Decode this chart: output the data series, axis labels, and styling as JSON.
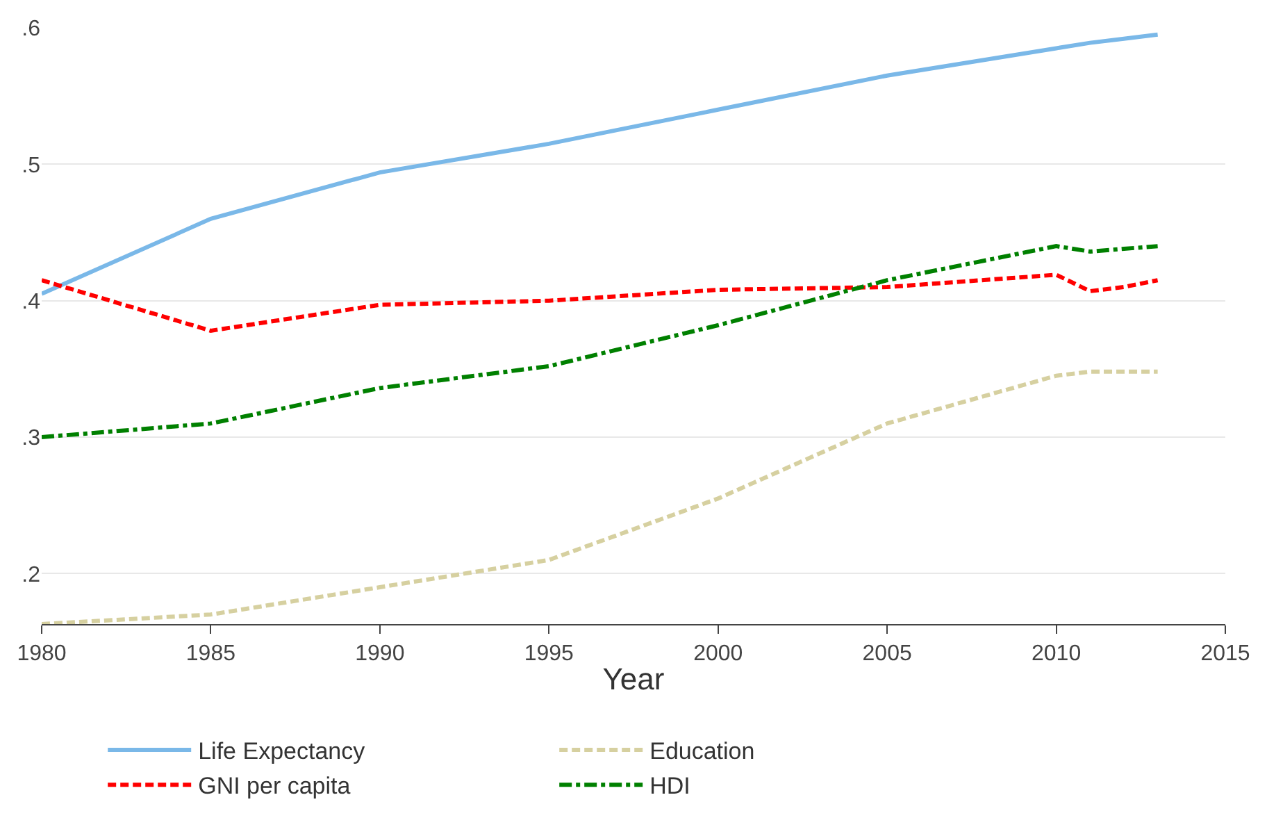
{
  "chart_data": {
    "type": "line",
    "xlabel": "Year",
    "x": [
      1980,
      1985,
      1990,
      1995,
      2000,
      2005,
      2010,
      2011,
      2012,
      2013
    ],
    "series": [
      {
        "name": "Life Expectancy",
        "color": "#7ab8e8",
        "line_style": "solid",
        "values": [
          0.405,
          0.46,
          0.494,
          0.515,
          0.54,
          0.565,
          0.585,
          0.589,
          0.592,
          0.595
        ]
      },
      {
        "name": "Education",
        "color": "#d6d0a0",
        "line_style": "dashed",
        "values": [
          0.163,
          0.17,
          0.19,
          0.21,
          0.255,
          0.31,
          0.345,
          0.348,
          0.348,
          0.348
        ]
      },
      {
        "name": "GNI per capita",
        "color": "#ff0000",
        "line_style": "dashed",
        "values": [
          0.415,
          0.378,
          0.397,
          0.4,
          0.408,
          0.41,
          0.419,
          0.407,
          0.41,
          0.415
        ]
      },
      {
        "name": "HDI",
        "color": "#008000",
        "line_style": "dotted",
        "values": [
          0.3,
          0.31,
          0.336,
          0.352,
          0.382,
          0.415,
          0.44,
          0.436,
          0.438,
          0.44
        ]
      }
    ],
    "xlim": [
      1980,
      2015
    ],
    "xticks": [
      1980,
      1985,
      1990,
      1995,
      2000,
      2005,
      2010,
      2015
    ],
    "ylim": [
      0.163,
      0.6
    ],
    "yticks": [
      {
        "value": 0.2,
        "label": ".2"
      },
      {
        "value": 0.3,
        "label": ".3"
      },
      {
        "value": 0.4,
        "label": ".4"
      },
      {
        "value": 0.5,
        "label": ".5"
      },
      {
        "value": 0.6,
        "label": ".6"
      }
    ],
    "grid": "y",
    "legend": "bottom",
    "marker": "none"
  }
}
